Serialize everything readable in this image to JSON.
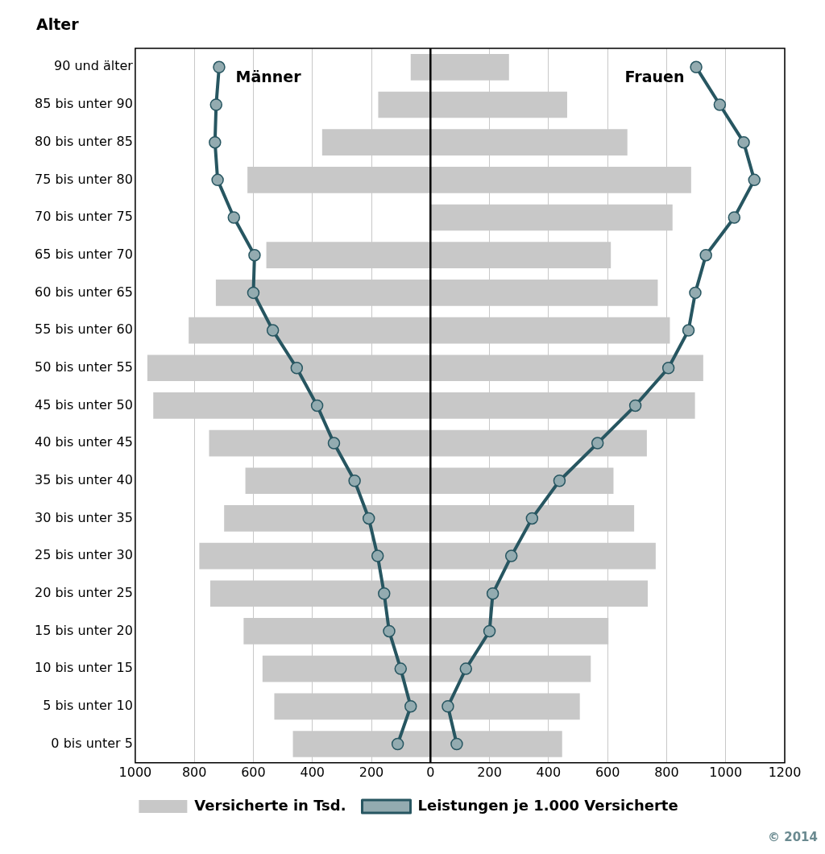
{
  "chart_data": {
    "type": "bar",
    "orientation": "horizontal",
    "stacked": true,
    "ylabel": "Alter",
    "categories": [
      "90 und älter",
      "85 bis unter 90",
      "80 bis unter 85",
      "75 bis unter 80",
      "70 bis unter 75",
      "65 bis unter 70",
      "60 bis unter 65",
      "55 bis unter 60",
      "50 bis unter 55",
      "45 bis unter 50",
      "40 bis unter 45",
      "35 bis unter 40",
      "30 bis unter 35",
      "25 bis unter 30",
      "20 bis unter 25",
      "15 bis unter 20",
      "10 bis unter 15",
      "5 bis unter 10",
      "0 bis unter 5"
    ],
    "series": [
      {
        "name": "Versicherte in Tsd.",
        "color": "#c8c8c8",
        "values": [
          -67,
          -177,
          -367,
          -620,
          null,
          -556,
          -727,
          -819,
          -959,
          -939,
          -750,
          -627,
          -699,
          -783,
          -746,
          -633,
          -569,
          -529,
          -466
        ]
      },
      {
        "color": "#c8c8c8",
        "values": [
          266,
          463,
          667,
          883,
          820,
          611,
          770,
          811,
          924,
          896,
          733,
          620,
          690,
          763,
          736,
          603,
          543,
          506,
          446
        ]
      },
      {
        "name": "Leistungen je 1.000 Versicherte",
        "type": "line",
        "color": "#275661",
        "values": [
          -716,
          -726,
          -730,
          -721,
          -666,
          -596,
          -600,
          -534,
          -453,
          -384,
          -327,
          -257,
          -209,
          -179,
          -157,
          -140,
          -101,
          -67,
          -111
        ]
      },
      {
        "type": "line",
        "color": "#275661",
        "values": [
          900,
          980,
          1061,
          1097,
          1029,
          933,
          897,
          874,
          806,
          694,
          566,
          437,
          344,
          274,
          211,
          200,
          120,
          59,
          89
        ]
      }
    ],
    "xlim": [
      -1000,
      1200
    ],
    "xticks": [
      {
        "value": -1000,
        "label": "1000"
      },
      {
        "value": -800,
        "label": "800"
      },
      {
        "value": -600,
        "label": "600"
      },
      {
        "value": -400,
        "label": "400"
      },
      {
        "value": -200,
        "label": "200"
      },
      0,
      200,
      400,
      600,
      800,
      1000,
      1200
    ],
    "ref_lines": [
      {
        "axis": "x",
        "value": 0,
        "color": "#000000"
      }
    ],
    "grid": "x",
    "legend": "bottom",
    "marker": "circle",
    "line_style": "solid",
    "annotations": [
      "Männer",
      "Frauen",
      "© 2014"
    ]
  }
}
